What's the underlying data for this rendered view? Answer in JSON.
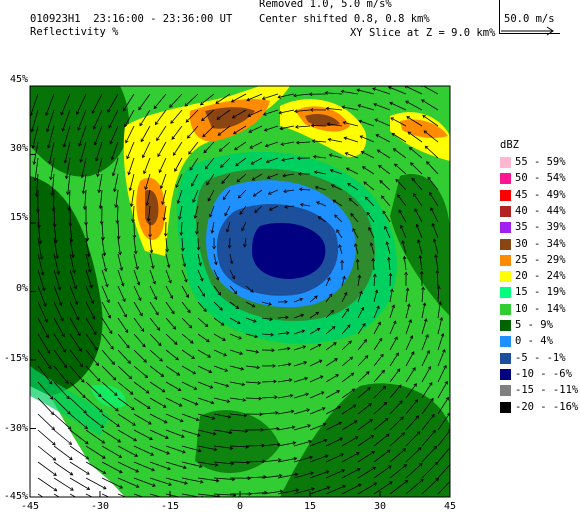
{
  "header": {
    "line1": "010923H1  23:16:00 - 23:36:00 UT",
    "line2": "Reflectivity %",
    "removed": "Removed 1.0, 5.0 m/s%",
    "center": "Center shifted 0.8, 0.8 km%",
    "slice": "XY Slice at Z = 9.0 km%",
    "scale": "50.0 m/s"
  },
  "axes": {
    "y_ticks": [
      "45%",
      "30%",
      "15%",
      "0%",
      "-15%",
      "-30%",
      "-45%"
    ],
    "x_ticks": [
      "-45",
      "-30",
      "-15",
      "0",
      "15",
      "30",
      "45"
    ]
  },
  "legend": {
    "title": "dBZ",
    "items": [
      {
        "label": "55 - 59%",
        "color": "#ffb6d0"
      },
      {
        "label": "50 - 54%",
        "color": "#ff1493"
      },
      {
        "label": "45 - 49%",
        "color": "#ff0000"
      },
      {
        "label": "40 - 44%",
        "color": "#b22222"
      },
      {
        "label": "35 - 39%",
        "color": "#a020f0"
      },
      {
        "label": "30 - 34%",
        "color": "#8b4513"
      },
      {
        "label": "25 - 29%",
        "color": "#ff8c00"
      },
      {
        "label": "20 - 24%",
        "color": "#ffff00"
      },
      {
        "label": "15 - 19%",
        "color": "#00ff7f"
      },
      {
        "label": "10 - 14%",
        "color": "#32cd32"
      },
      {
        "label": "5 - 9%",
        "color": "#006400"
      },
      {
        "label": "0 - 4%",
        "color": "#1e90ff"
      },
      {
        "label": "-5 - -1%",
        "color": "#1c4f9c"
      },
      {
        "label": "-10 - -6%",
        "color": "#000080"
      },
      {
        "label": "-15 - -11%",
        "color": "#808080"
      },
      {
        "label": "-20 - -16%",
        "color": "#000000"
      }
    ]
  }
}
